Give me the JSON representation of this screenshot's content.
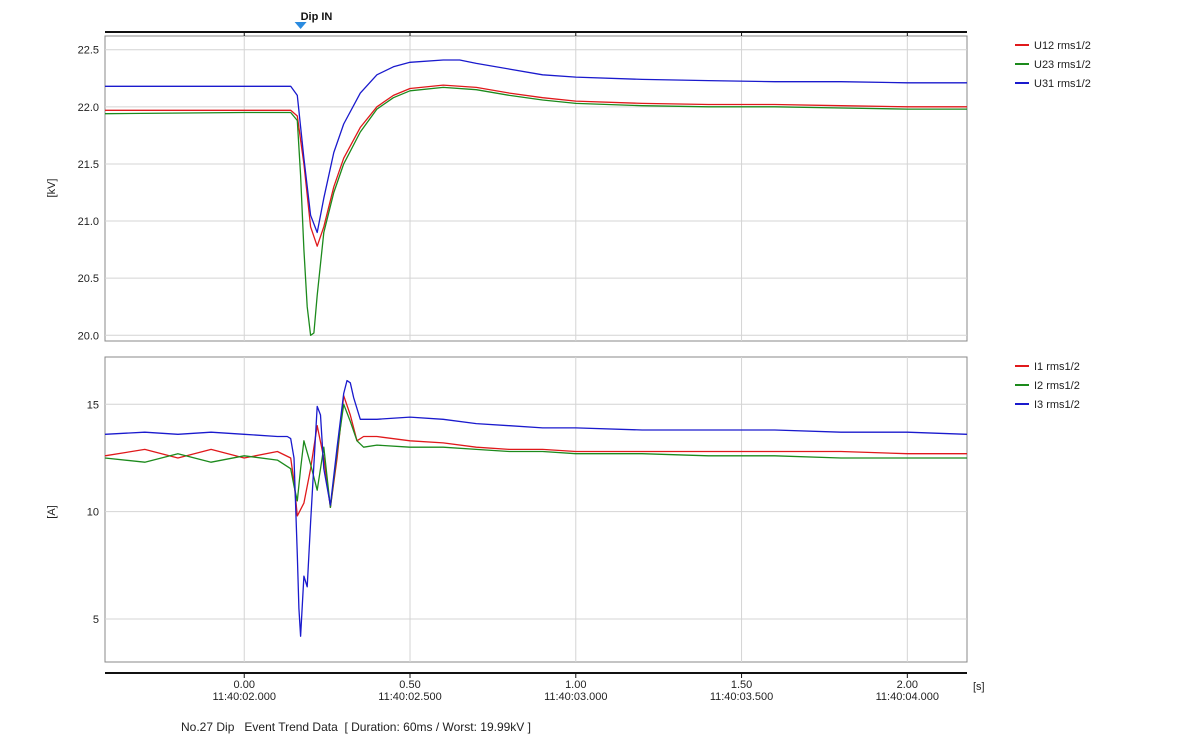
{
  "marker": {
    "label": "Dip IN",
    "x": 0.17
  },
  "x_axis": {
    "range": [
      -0.42,
      2.18
    ],
    "unit": "[s]",
    "ticks": [
      {
        "value": 0.0,
        "label": "0.00",
        "time": "11:40:02.000"
      },
      {
        "value": 0.5,
        "label": "0.50",
        "time": "11:40:02.500"
      },
      {
        "value": 1.0,
        "label": "1.00",
        "time": "11:40:03.000"
      },
      {
        "value": 1.5,
        "label": "1.50",
        "time": "11:40:03.500"
      },
      {
        "value": 2.0,
        "label": "2.00",
        "time": "11:40:04.000"
      }
    ]
  },
  "footer": {
    "event": "No.27 Dip",
    "text": "Event Trend Data  [ Duration: 60ms / Worst: 19.99kV ]"
  },
  "chart_data": [
    {
      "type": "line",
      "ylabel": "[kV]",
      "ylim": [
        19.95,
        22.62
      ],
      "yticks": [
        20.0,
        20.5,
        21.0,
        21.5,
        22.0,
        22.5
      ],
      "grid": true,
      "legend_position": "right",
      "series": [
        {
          "name": "U12 rms1/2",
          "color": "#e0191b",
          "x": [
            -0.42,
            0.0,
            0.14,
            0.16,
            0.18,
            0.2,
            0.22,
            0.24,
            0.27,
            0.3,
            0.35,
            0.4,
            0.45,
            0.5,
            0.6,
            0.7,
            0.8,
            0.9,
            1.0,
            1.2,
            1.4,
            1.6,
            1.8,
            2.0,
            2.18
          ],
          "values": [
            21.97,
            21.97,
            21.97,
            21.92,
            21.5,
            20.95,
            20.78,
            20.95,
            21.3,
            21.55,
            21.82,
            22.0,
            22.1,
            22.16,
            22.19,
            22.17,
            22.12,
            22.08,
            22.05,
            22.03,
            22.02,
            22.02,
            22.01,
            22.0,
            22.0
          ]
        },
        {
          "name": "U23 rms1/2",
          "color": "#1c8a1c",
          "x": [
            -0.42,
            0.0,
            0.14,
            0.16,
            0.17,
            0.18,
            0.19,
            0.2,
            0.21,
            0.22,
            0.24,
            0.27,
            0.3,
            0.35,
            0.4,
            0.45,
            0.5,
            0.6,
            0.7,
            0.8,
            0.9,
            1.0,
            1.2,
            1.4,
            1.6,
            1.8,
            2.0,
            2.18
          ],
          "values": [
            21.94,
            21.95,
            21.95,
            21.88,
            21.4,
            20.75,
            20.25,
            20.0,
            20.02,
            20.35,
            20.9,
            21.25,
            21.5,
            21.78,
            21.98,
            22.08,
            22.14,
            22.17,
            22.15,
            22.1,
            22.06,
            22.03,
            22.01,
            22.0,
            22.0,
            21.99,
            21.98,
            21.98
          ]
        },
        {
          "name": "U31 rms1/2",
          "color": "#1a1acd",
          "x": [
            -0.42,
            0.0,
            0.14,
            0.16,
            0.18,
            0.2,
            0.22,
            0.24,
            0.27,
            0.3,
            0.35,
            0.4,
            0.45,
            0.5,
            0.6,
            0.65,
            0.7,
            0.8,
            0.9,
            1.0,
            1.2,
            1.4,
            1.6,
            1.8,
            2.0,
            2.18
          ],
          "values": [
            22.18,
            22.18,
            22.18,
            22.1,
            21.55,
            21.05,
            20.9,
            21.2,
            21.6,
            21.85,
            22.12,
            22.28,
            22.35,
            22.39,
            22.41,
            22.41,
            22.38,
            22.33,
            22.28,
            22.26,
            22.24,
            22.23,
            22.22,
            22.22,
            22.21,
            22.21
          ]
        }
      ]
    },
    {
      "type": "line",
      "ylabel": "[A]",
      "ylim": [
        3.0,
        17.2
      ],
      "yticks": [
        5,
        10,
        15
      ],
      "grid": true,
      "legend_position": "right",
      "series": [
        {
          "name": "I1 rms1/2",
          "color": "#e0191b",
          "x": [
            -0.42,
            -0.3,
            -0.2,
            -0.1,
            0.0,
            0.1,
            0.14,
            0.15,
            0.16,
            0.18,
            0.2,
            0.22,
            0.24,
            0.26,
            0.28,
            0.3,
            0.32,
            0.34,
            0.36,
            0.4,
            0.5,
            0.6,
            0.7,
            0.8,
            0.9,
            1.0,
            1.2,
            1.4,
            1.6,
            1.8,
            2.0,
            2.18
          ],
          "values": [
            12.6,
            12.9,
            12.5,
            12.9,
            12.5,
            12.8,
            12.5,
            11.4,
            9.8,
            10.4,
            12.0,
            14.0,
            12.5,
            10.2,
            12.5,
            15.4,
            14.5,
            13.3,
            13.5,
            13.5,
            13.3,
            13.2,
            13.0,
            12.9,
            12.9,
            12.8,
            12.8,
            12.8,
            12.8,
            12.8,
            12.7,
            12.7
          ]
        },
        {
          "name": "I2 rms1/2",
          "color": "#1c8a1c",
          "x": [
            -0.42,
            -0.3,
            -0.2,
            -0.1,
            0.0,
            0.1,
            0.14,
            0.15,
            0.16,
            0.17,
            0.18,
            0.2,
            0.22,
            0.24,
            0.26,
            0.28,
            0.3,
            0.32,
            0.34,
            0.36,
            0.4,
            0.5,
            0.6,
            0.7,
            0.8,
            0.9,
            1.0,
            1.2,
            1.4,
            1.6,
            1.8,
            2.0,
            2.18
          ],
          "values": [
            12.5,
            12.3,
            12.7,
            12.3,
            12.6,
            12.4,
            12.0,
            11.2,
            10.5,
            12.0,
            13.3,
            12.2,
            11.0,
            13.0,
            10.2,
            12.8,
            15.0,
            14.2,
            13.3,
            13.0,
            13.1,
            13.0,
            13.0,
            12.9,
            12.8,
            12.8,
            12.7,
            12.7,
            12.6,
            12.6,
            12.5,
            12.5,
            12.5
          ]
        },
        {
          "name": "I3 rms1/2",
          "color": "#1a1acd",
          "x": [
            -0.42,
            -0.3,
            -0.2,
            -0.1,
            0.0,
            0.1,
            0.13,
            0.14,
            0.15,
            0.16,
            0.165,
            0.17,
            0.18,
            0.19,
            0.2,
            0.22,
            0.23,
            0.24,
            0.26,
            0.28,
            0.3,
            0.31,
            0.32,
            0.33,
            0.35,
            0.4,
            0.5,
            0.6,
            0.7,
            0.8,
            0.9,
            1.0,
            1.2,
            1.4,
            1.6,
            1.8,
            2.0,
            2.18
          ],
          "values": [
            13.6,
            13.7,
            13.6,
            13.7,
            13.6,
            13.5,
            13.5,
            13.4,
            12.5,
            8.0,
            5.5,
            4.2,
            7.0,
            6.5,
            9.5,
            14.9,
            14.5,
            12.0,
            10.3,
            13.0,
            15.5,
            16.1,
            16.0,
            15.3,
            14.3,
            14.3,
            14.4,
            14.3,
            14.1,
            14.0,
            13.9,
            13.9,
            13.8,
            13.8,
            13.8,
            13.7,
            13.7,
            13.6
          ]
        }
      ]
    }
  ]
}
